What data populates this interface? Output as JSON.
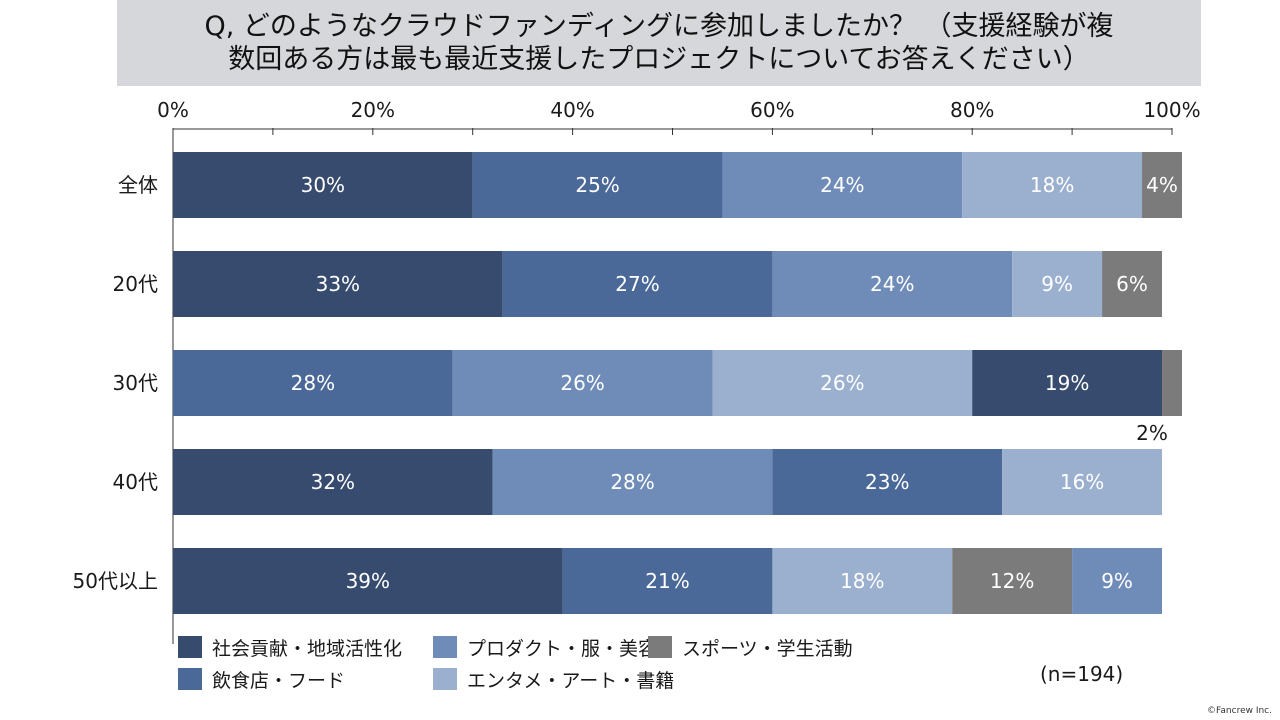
{
  "title": "Q, どのようなクラウドファンディングに参加しましたか？ （支援経験が複\n数回ある方は最も最近支援したプロジェクトについてお答えください）",
  "sample_note": "(n=194)",
  "copyright": "©Fancrew Inc.",
  "colors": {
    "social": "#374b6e",
    "food": "#4a6898",
    "product": "#6f8cb8",
    "entertainment": "#9bb0cf",
    "sports": "#7b7b7b",
    "grid": "#c9c9c9",
    "axis": "#333333"
  },
  "chart_data": {
    "type": "bar",
    "orientation": "horizontal",
    "stacked": true,
    "xlim": [
      0,
      100
    ],
    "x_ticks": [
      "0%",
      "20%",
      "40%",
      "60%",
      "80%",
      "100%"
    ],
    "legend_position": "bottom",
    "legend": [
      {
        "key": "social",
        "label": "社会貢献・地域活性化"
      },
      {
        "key": "product",
        "label": "プロダクト・服・美容"
      },
      {
        "key": "sports",
        "label": "スポーツ・学生活動"
      },
      {
        "key": "food",
        "label": "飲食店・フード"
      },
      {
        "key": "entertainment",
        "label": "エンタメ・アート・書籍"
      }
    ],
    "rows": [
      {
        "label": "全体",
        "segments": [
          {
            "key": "social",
            "value": 30,
            "text": "30%"
          },
          {
            "key": "food",
            "value": 25,
            "text": "25%"
          },
          {
            "key": "product",
            "value": 24,
            "text": "24%"
          },
          {
            "key": "entertainment",
            "value": 18,
            "text": "18%"
          },
          {
            "key": "sports",
            "value": 4,
            "text": "4%"
          }
        ]
      },
      {
        "label": "20代",
        "segments": [
          {
            "key": "social",
            "value": 33,
            "text": "33%"
          },
          {
            "key": "food",
            "value": 27,
            "text": "27%"
          },
          {
            "key": "product",
            "value": 24,
            "text": "24%"
          },
          {
            "key": "entertainment",
            "value": 9,
            "text": "9%"
          },
          {
            "key": "sports",
            "value": 6,
            "text": "6%"
          }
        ]
      },
      {
        "label": "30代",
        "segments": [
          {
            "key": "food",
            "value": 28,
            "text": "28%"
          },
          {
            "key": "product",
            "value": 26,
            "text": "26%"
          },
          {
            "key": "entertainment",
            "value": 26,
            "text": "26%"
          },
          {
            "key": "social",
            "value": 19,
            "text": "19%"
          },
          {
            "key": "sports",
            "value": 2,
            "text": "2%",
            "outside_below": true
          }
        ]
      },
      {
        "label": "40代",
        "segments": [
          {
            "key": "social",
            "value": 32,
            "text": "32%"
          },
          {
            "key": "product",
            "value": 28,
            "text": "28%"
          },
          {
            "key": "food",
            "value": 23,
            "text": "23%"
          },
          {
            "key": "entertainment",
            "value": 16,
            "text": "16%"
          }
        ]
      },
      {
        "label": "50代以上",
        "segments": [
          {
            "key": "social",
            "value": 39,
            "text": "39%"
          },
          {
            "key": "food",
            "value": 21,
            "text": "21%"
          },
          {
            "key": "entertainment",
            "value": 18,
            "text": "18%"
          },
          {
            "key": "sports",
            "value": 12,
            "text": "12%"
          },
          {
            "key": "product",
            "value": 9,
            "text": "9%"
          }
        ]
      }
    ]
  }
}
